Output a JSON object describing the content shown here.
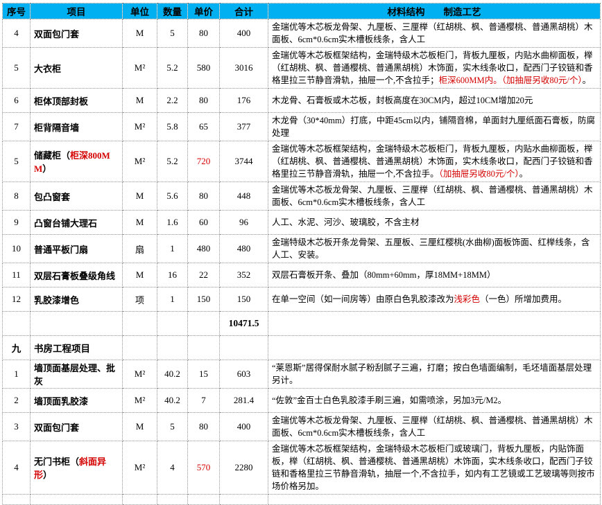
{
  "colors": {
    "header_bg": "#00b0f0",
    "highlight_red": "#d40000",
    "grid": "#8f8f8f"
  },
  "columns": [
    "序号",
    "项目",
    "单位",
    "数量",
    "单价",
    "合计",
    "材料结构　　制造工艺"
  ],
  "rows": [
    {
      "type": "item",
      "no": "4",
      "item": [
        {
          "t": "双面包门套"
        }
      ],
      "unit": "M",
      "qty": "5",
      "price": "80",
      "total": "400",
      "desc": [
        {
          "t": "金瑞优等木芯板龙骨架、九厘板、三厘榉（红胡桃、枫、普通樱桃、普通黑胡桃）木面板、6cm*0.6cm实木槽板线条，含人工"
        }
      ]
    },
    {
      "type": "item",
      "no": "5",
      "item": [
        {
          "t": "大衣柜"
        }
      ],
      "unit": "M²",
      "qty": "5.2",
      "price": "580",
      "total": "3016",
      "desc": [
        {
          "t": "金瑞优等木芯板框架结构，金瑞特级木芯板柜门，背板九厘板，内贴水曲柳面板，榉（红胡桃、枫、普通樱桃、普通黑胡桃）木饰面，实木线条收口，配西门子铰链和香格里拉三节静音滑轨，抽屉一个,不含拉手；"
        },
        {
          "t": "柜深600MM内。（加抽屉另收80元/个）",
          "red": true
        },
        {
          "t": "。"
        }
      ]
    },
    {
      "type": "item",
      "no": "6",
      "item": [
        {
          "t": "柜体顶部封板"
        }
      ],
      "unit": "M",
      "qty": "2.2",
      "price": "80",
      "total": "176",
      "desc": [
        {
          "t": "木龙骨、石膏板或木芯板，封板高度在30CM内，超过10CM增加20元"
        }
      ]
    },
    {
      "type": "item",
      "no": "7",
      "item": [
        {
          "t": "柜背隔音墙"
        }
      ],
      "unit": "M²",
      "qty": "5.8",
      "price": "65",
      "total": "377",
      "desc": [
        {
          "t": "木龙骨（30*40mm）打底，中距45cm以内，铺隔音棉，单面封九厘纸面石膏板，防腐处理"
        }
      ]
    },
    {
      "type": "item",
      "no": "5",
      "item": [
        {
          "t": "储藏柜（"
        },
        {
          "t": "柜深800MM",
          "red": true
        },
        {
          "t": "）"
        }
      ],
      "unit": "M²",
      "qty": "5.2",
      "price": "720",
      "price_red": true,
      "total": "3744",
      "desc": [
        {
          "t": "金瑞优等木芯板框架结构，金瑞特级木芯板柜门，背板九厘板，内贴水曲柳面板，榉（红胡桃、枫、普通樱桃、普通黑胡桃）木饰面，实木线条收口，配西门子铰链和香格里拉三节静音滑轨，抽屉一个,不含拉手。"
        },
        {
          "t": "（加抽屉另收80元/个）",
          "red": true
        },
        {
          "t": "。"
        }
      ]
    },
    {
      "type": "item",
      "no": "8",
      "item": [
        {
          "t": "包凸窗套"
        }
      ],
      "unit": "M",
      "qty": "5.6",
      "price": "80",
      "total": "448",
      "desc": [
        {
          "t": "金瑞优等木芯板龙骨架、九厘板、三厘榉（红胡桃、枫、普通樱桃、普通黑胡桃）木面板、6cm*0.6cm实木槽板线条，含人工"
        }
      ]
    },
    {
      "type": "item",
      "no": "9",
      "item": [
        {
          "t": "凸窗台铺大理石"
        }
      ],
      "unit": "M",
      "qty": "1.6",
      "price": "60",
      "total": "96",
      "desc": [
        {
          "t": "人工、水泥、河沙、玻璃胶，不含主材"
        }
      ]
    },
    {
      "type": "item",
      "no": "10",
      "item": [
        {
          "t": "普通平板门扇"
        }
      ],
      "unit": "扇",
      "qty": "1",
      "price": "480",
      "total": "480",
      "desc": [
        {
          "t": "金瑞特级木芯板开条龙骨架、五厘板、三厘红樱桃(水曲柳)面板饰面、红榉线条，含人工、安装。"
        }
      ]
    },
    {
      "type": "item",
      "no": "11",
      "item": [
        {
          "t": "双层石膏板叠级角线"
        }
      ],
      "unit": "M",
      "qty": "16",
      "price": "22",
      "total": "352",
      "desc": [
        {
          "t": "双层石膏板开条、叠加（80mm+60mm，厚18MM+18MM）"
        }
      ]
    },
    {
      "type": "item",
      "no": "12",
      "item": [
        {
          "t": "乳胶漆增色"
        }
      ],
      "unit": "项",
      "qty": "1",
      "price": "150",
      "total": "150",
      "desc": [
        {
          "t": "在单一空间（如一间房等）由原白色乳胶漆改为"
        },
        {
          "t": "浅彩色",
          "red": true
        },
        {
          "t": "（一色）所增加费用。"
        }
      ]
    },
    {
      "type": "subtotal",
      "no": "",
      "item": [],
      "unit": "",
      "qty": "",
      "price": "",
      "total": "10471.5",
      "desc": []
    },
    {
      "type": "section",
      "no": "九",
      "item": [
        {
          "t": "书房工程项目"
        }
      ],
      "unit": "",
      "qty": "",
      "price": "",
      "total": "",
      "desc": []
    },
    {
      "type": "item",
      "no": "1",
      "item": [
        {
          "t": "墙顶面基层处理、批灰"
        }
      ],
      "unit": "M²",
      "qty": "40.2",
      "price": "15",
      "total": "603",
      "desc": [
        {
          "t": "“莱恩斯”居得保耐水腻子粉刮腻子三遍，打磨；按白色墙面编制，毛坯墙面基层处理另计。"
        }
      ]
    },
    {
      "type": "item",
      "no": "2",
      "item": [
        {
          "t": "墙顶面乳胶漆"
        }
      ],
      "unit": "M²",
      "qty": "40.2",
      "price": "7",
      "total": "281.4",
      "desc": [
        {
          "t": "“佐敦”金百士白色乳胶漆手刷三遍，如需喷涂，另加3元/M2。"
        }
      ]
    },
    {
      "type": "item",
      "no": "3",
      "item": [
        {
          "t": "双面包门套"
        }
      ],
      "unit": "M",
      "qty": "5",
      "price": "80",
      "total": "400",
      "desc": [
        {
          "t": "金瑞优等木芯板龙骨架、九厘板、三厘榉（红胡桃、枫、普通樱桃、普通黑胡桃）木面板、6cm*0.6cm实木槽板线条，含人工"
        }
      ]
    },
    {
      "type": "item",
      "no": "4",
      "item": [
        {
          "t": "无门书柜（"
        },
        {
          "t": "斜面异形",
          "red": true
        },
        {
          "t": "）"
        }
      ],
      "unit": "M²",
      "qty": "4",
      "price": "570",
      "price_red": true,
      "total": "2280",
      "desc": [
        {
          "t": "金瑞优等木芯板框架结构，金瑞特级木芯板柜门或玻璃门，背板九厘板，内贴饰面板，榉（红胡桃、枫、普通樱桃、普通黑胡桃）木饰面，实木线条收口，配西门子铰链和香格里拉三节静音滑轨，抽屉一个,不含拉手，如内有工艺镜或工艺玻璃等则按市场价格另加。"
        }
      ]
    },
    {
      "type": "spacer",
      "no": "",
      "item": [],
      "unit": "",
      "qty": "",
      "price": "",
      "total": "",
      "desc": []
    }
  ]
}
